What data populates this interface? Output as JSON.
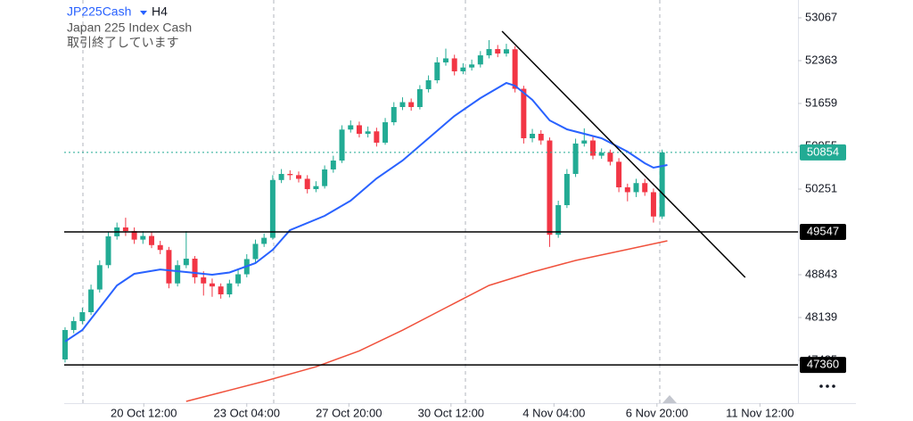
{
  "header": {
    "symbol": "JP225Cash",
    "timeframe": "H4",
    "name": "Japan 225 Index Cash",
    "status": "取引終了しています"
  },
  "chart_data": {
    "type": "candlestick",
    "open": [
      47450,
      47934,
      48080,
      48227,
      48600,
      49000,
      49474,
      49620,
      49560,
      49420,
      49480,
      49330,
      49250,
      48700,
      49000,
      49107,
      48800,
      48700,
      48650,
      48520,
      48700,
      48850,
      49100,
      49350,
      49450,
      50400,
      50500,
      50480,
      50420,
      50250,
      50300,
      50574,
      50720,
      51230,
      51300,
      51160,
      51200,
      51014,
      51350,
      51600,
      51680,
      51600,
      51894,
      52040,
      52334,
      52400,
      52187,
      52250,
      52300,
      52450,
      52553,
      52480,
      52550,
      51900,
      51087,
      51160,
      51050,
      49500,
      49987,
      50500,
      51000,
      51050,
      50800,
      50850,
      50700,
      50280,
      50200,
      50350,
      50200,
      49800
    ],
    "high": [
      47980,
      48150,
      48300,
      48680,
      49080,
      49550,
      49700,
      49780,
      49620,
      49560,
      49540,
      49400,
      49300,
      49080,
      49560,
      49150,
      48900,
      48780,
      48700,
      48760,
      48920,
      49180,
      49420,
      49520,
      50480,
      50580,
      50560,
      50540,
      50480,
      50380,
      50640,
      50800,
      51300,
      51380,
      51360,
      51280,
      51260,
      51420,
      51680,
      51760,
      51740,
      51960,
      52120,
      52420,
      52560,
      52460,
      52320,
      52380,
      52520,
      52700,
      52620,
      52640,
      52600,
      51950,
      51240,
      51220,
      51100,
      50060,
      50580,
      51080,
      51250,
      51120,
      50920,
      50900,
      50760,
      50340,
      50420,
      50420,
      50260,
      50900
    ],
    "low": [
      47400,
      47880,
      48030,
      48180,
      48550,
      48950,
      49420,
      49480,
      49350,
      49350,
      49280,
      49180,
      48620,
      48650,
      48950,
      48700,
      48500,
      48480,
      48450,
      48470,
      48650,
      48800,
      49050,
      49300,
      49420,
      50350,
      50400,
      50360,
      50180,
      50200,
      50260,
      50520,
      50680,
      51180,
      51100,
      51100,
      50950,
      50980,
      51300,
      51550,
      51540,
      51560,
      51840,
      51990,
      52280,
      52120,
      52140,
      52200,
      52250,
      52400,
      52420,
      52430,
      51840,
      51000,
      51020,
      50980,
      49300,
      49450,
      49940,
      50450,
      50950,
      50740,
      50750,
      50640,
      50200,
      50050,
      50120,
      50140,
      49700,
      49760
    ],
    "close": [
      47934,
      48080,
      48227,
      48600,
      49000,
      49474,
      49620,
      49560,
      49420,
      49480,
      49330,
      49250,
      48700,
      49000,
      49107,
      48800,
      48700,
      48650,
      48520,
      48700,
      48850,
      49100,
      49350,
      49450,
      50400,
      50500,
      50480,
      50420,
      50250,
      50300,
      50574,
      50720,
      51230,
      51300,
      51160,
      51200,
      51014,
      51350,
      51600,
      51680,
      51600,
      51894,
      52040,
      52334,
      52400,
      52187,
      52250,
      52300,
      52450,
      52553,
      52480,
      52550,
      51900,
      51087,
      51160,
      51050,
      49500,
      49987,
      50500,
      51000,
      51050,
      50800,
      50850,
      50700,
      50280,
      50200,
      50350,
      50200,
      49800,
      50854
    ],
    "up_color": "#22ab94",
    "down_color": "#f23645",
    "xlim": [
      -0.1,
      84.7
    ],
    "xticks": [
      {
        "value": 9.1,
        "label": "20 Oct 12:00"
      },
      {
        "value": 21.0,
        "label": "23 Oct 04:00"
      },
      {
        "value": 32.8,
        "label": "27 Oct 20:00"
      },
      {
        "value": 44.6,
        "label": "30 Oct 12:00"
      },
      {
        "value": 56.5,
        "label": "4 Nov 04:00"
      },
      {
        "value": 68.4,
        "label": "6 Nov 20:00"
      },
      {
        "value": 80.3,
        "label": "11 Nov 12:00"
      }
    ],
    "ylim": [
      46731,
      53360
    ],
    "yticks": [
      53067,
      52363,
      51659,
      50955,
      50251,
      49547,
      48843,
      48139,
      47435
    ],
    "lines": [
      {
        "color": "#2962ff",
        "x": [
          0,
          2,
          4,
          6,
          8,
          11,
          14,
          17,
          19,
          22,
          24,
          26,
          30,
          33,
          36,
          39,
          42,
          45,
          48,
          51,
          52,
          54,
          56,
          58,
          62,
          65,
          67,
          68,
          69.6
        ],
        "values": [
          47744,
          47934,
          48300,
          48667,
          48857,
          48930,
          48887,
          48843,
          48880,
          49034,
          49253,
          49576,
          49811,
          50060,
          50427,
          50720,
          51087,
          51454,
          51747,
          51996,
          51950,
          51718,
          51380,
          51234,
          51087,
          50867,
          50676,
          50603,
          50647
        ]
      },
      {
        "color": "#f0513c",
        "x": [
          14,
          18,
          23,
          29,
          34,
          39,
          44,
          49,
          54,
          59,
          65,
          69.6
        ],
        "values": [
          46760,
          46907,
          47090,
          47330,
          47590,
          47930,
          48300,
          48667,
          48887,
          49077,
          49260,
          49400
        ]
      }
    ],
    "levels": [
      49547,
      47360
    ],
    "last_price": 50854,
    "last_color": "#22ab94",
    "trendline": {
      "x": [
        50.5,
        78.6
      ],
      "y": [
        52847,
        48799
      ]
    }
  }
}
